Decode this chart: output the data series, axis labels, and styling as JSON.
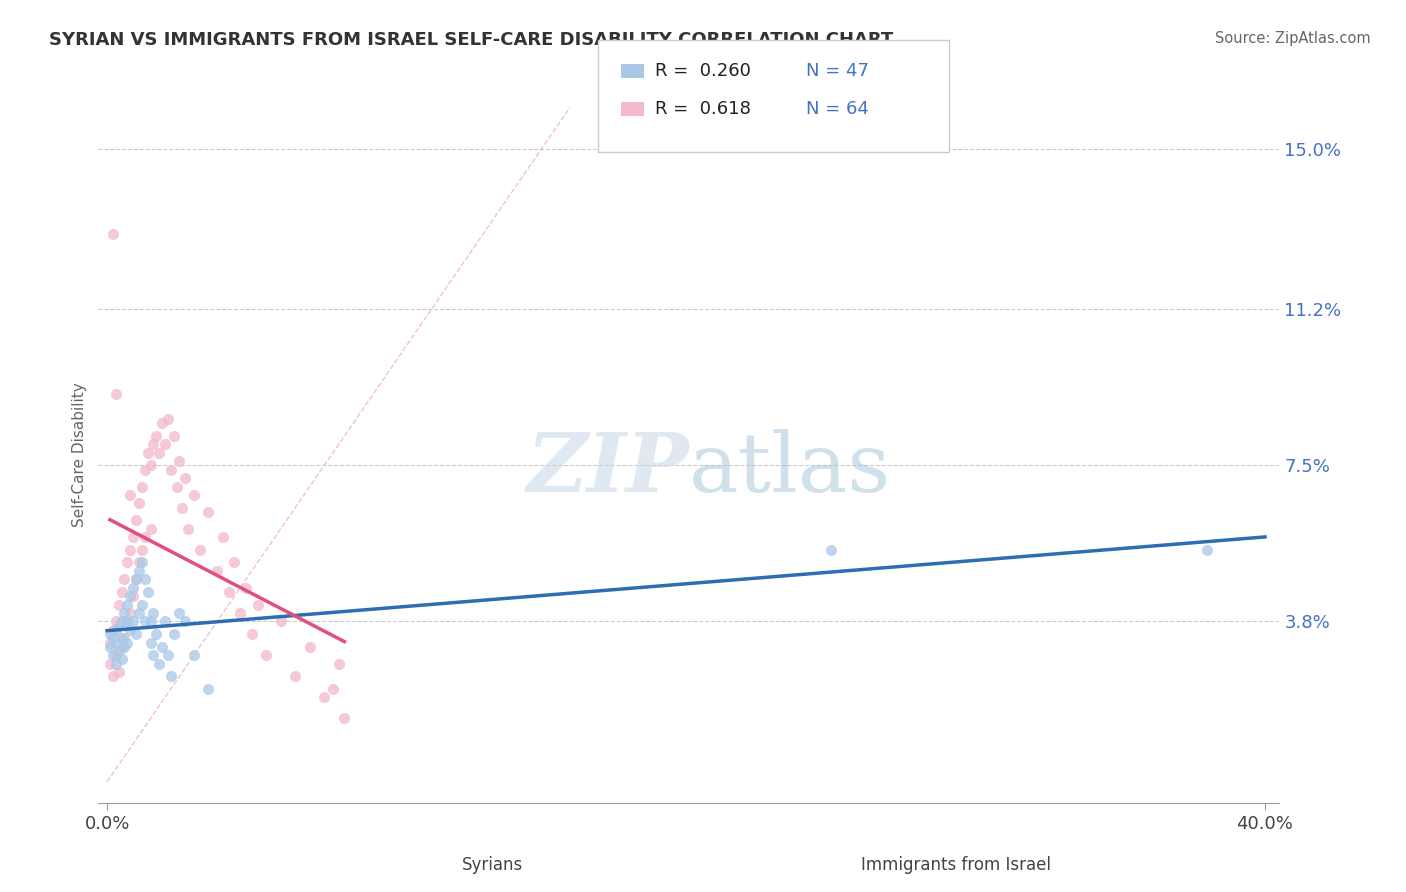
{
  "title": "SYRIAN VS IMMIGRANTS FROM ISRAEL SELF-CARE DISABILITY CORRELATION CHART",
  "source": "Source: ZipAtlas.com",
  "ylabel": "Self-Care Disability",
  "xlabel_syrians": "Syrians",
  "xlabel_israel": "Immigrants from Israel",
  "xlim": [
    -0.003,
    0.405
  ],
  "ylim": [
    -0.005,
    0.16
  ],
  "yticks": [
    0.038,
    0.075,
    0.112,
    0.15
  ],
  "ytick_labels": [
    "3.8%",
    "7.5%",
    "11.2%",
    "15.0%"
  ],
  "xtick_positions": [
    0.0,
    0.4
  ],
  "xtick_labels": [
    "0.0%",
    "40.0%"
  ],
  "legend_R1": "0.260",
  "legend_N1": "47",
  "legend_R2": "0.618",
  "legend_N2": "64",
  "color_syrians": "#a8c8e8",
  "color_israel": "#f4b8cc",
  "color_regression_syrians": "#2e6db4",
  "color_regression_israel": "#e0507a",
  "color_diagonal": "#f0b8cc",
  "watermark_zip": "ZIP",
  "watermark_atlas": "atlas",
  "background_color": "#ffffff",
  "syrians_x": [
    0.001,
    0.001,
    0.002,
    0.002,
    0.003,
    0.003,
    0.003,
    0.004,
    0.004,
    0.005,
    0.005,
    0.005,
    0.006,
    0.006,
    0.007,
    0.007,
    0.007,
    0.008,
    0.008,
    0.009,
    0.009,
    0.01,
    0.01,
    0.011,
    0.011,
    0.012,
    0.012,
    0.013,
    0.013,
    0.014,
    0.015,
    0.015,
    0.016,
    0.016,
    0.017,
    0.018,
    0.019,
    0.02,
    0.021,
    0.022,
    0.023,
    0.025,
    0.027,
    0.03,
    0.035,
    0.25,
    0.38
  ],
  "syrians_y": [
    0.035,
    0.032,
    0.034,
    0.03,
    0.036,
    0.033,
    0.028,
    0.037,
    0.031,
    0.038,
    0.034,
    0.029,
    0.04,
    0.032,
    0.042,
    0.038,
    0.033,
    0.044,
    0.036,
    0.046,
    0.038,
    0.048,
    0.035,
    0.05,
    0.04,
    0.052,
    0.042,
    0.048,
    0.038,
    0.045,
    0.038,
    0.033,
    0.04,
    0.03,
    0.035,
    0.028,
    0.032,
    0.038,
    0.03,
    0.025,
    0.035,
    0.04,
    0.038,
    0.03,
    0.022,
    0.055,
    0.055
  ],
  "israel_x": [
    0.001,
    0.001,
    0.002,
    0.002,
    0.003,
    0.003,
    0.004,
    0.004,
    0.005,
    0.005,
    0.006,
    0.006,
    0.007,
    0.007,
    0.008,
    0.008,
    0.009,
    0.009,
    0.01,
    0.01,
    0.011,
    0.011,
    0.012,
    0.012,
    0.013,
    0.013,
    0.014,
    0.015,
    0.015,
    0.016,
    0.017,
    0.018,
    0.019,
    0.02,
    0.021,
    0.022,
    0.023,
    0.024,
    0.025,
    0.026,
    0.027,
    0.028,
    0.03,
    0.032,
    0.035,
    0.038,
    0.04,
    0.042,
    0.044,
    0.046,
    0.048,
    0.05,
    0.052,
    0.055,
    0.06,
    0.065,
    0.07,
    0.075,
    0.08,
    0.082,
    0.002,
    0.003,
    0.008,
    0.078
  ],
  "israel_y": [
    0.033,
    0.028,
    0.036,
    0.025,
    0.038,
    0.03,
    0.042,
    0.026,
    0.045,
    0.032,
    0.048,
    0.034,
    0.052,
    0.038,
    0.055,
    0.04,
    0.058,
    0.044,
    0.062,
    0.048,
    0.066,
    0.052,
    0.07,
    0.055,
    0.074,
    0.058,
    0.078,
    0.075,
    0.06,
    0.08,
    0.082,
    0.078,
    0.085,
    0.08,
    0.086,
    0.074,
    0.082,
    0.07,
    0.076,
    0.065,
    0.072,
    0.06,
    0.068,
    0.055,
    0.064,
    0.05,
    0.058,
    0.045,
    0.052,
    0.04,
    0.046,
    0.035,
    0.042,
    0.03,
    0.038,
    0.025,
    0.032,
    0.02,
    0.028,
    0.015,
    0.13,
    0.092,
    0.068,
    0.022
  ]
}
